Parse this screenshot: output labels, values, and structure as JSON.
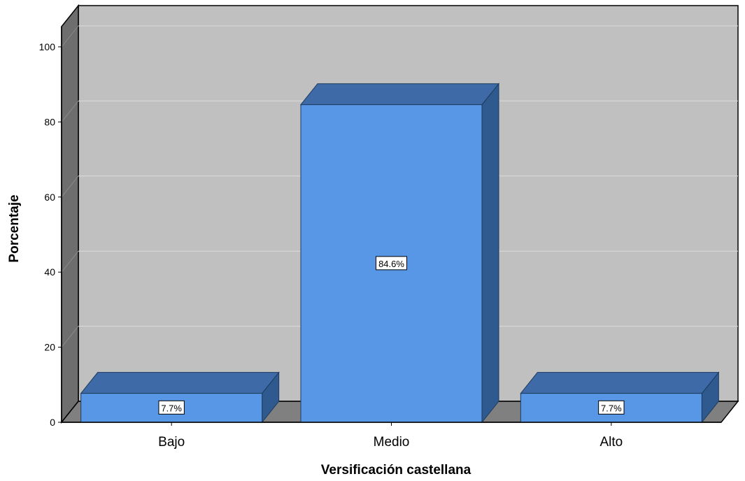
{
  "chart_data": {
    "type": "bar",
    "style": "3d",
    "categories": [
      "Bajo",
      "Medio",
      "Alto"
    ],
    "values": [
      7.7,
      84.6,
      7.7
    ],
    "data_labels": [
      "7.7%",
      "84.6%",
      "7.7%"
    ],
    "xlabel": "Versificación castellana",
    "ylabel": "Porcentaje",
    "ylim": [
      0,
      100
    ],
    "yticks": [
      "0",
      "20",
      "40",
      "60",
      "80",
      "100"
    ],
    "grid": true,
    "legend": "none",
    "colors": {
      "bar_front": "#5797e6",
      "bar_top": "#3e6ba8",
      "bar_side": "#2f5a90",
      "wall": "#c0c0c0",
      "floor": "#808080",
      "side_wall": "#6e6e6e",
      "gridline": "#dcdcdc"
    }
  }
}
